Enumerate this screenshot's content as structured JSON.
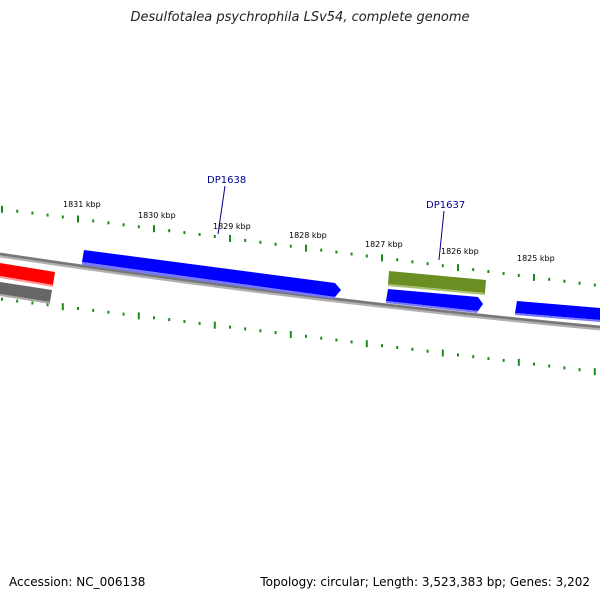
{
  "title": "Desulfotalea psychrophila LSv54, complete genome",
  "footer": {
    "accession": "Accession: NC_006138",
    "summary": "Topology: circular; Length: 3,523,383 bp; Genes: 3,202"
  },
  "colors": {
    "tick_green": "#1a8a1a",
    "backbone": "#808080",
    "gene_blue": "#0000ff",
    "gene_red": "#ff0000",
    "gene_gray": "#666666",
    "gene_olive": "#6b8e23",
    "label_navy": "#00008b"
  },
  "ticks": {
    "labels": [
      "1831 kbp",
      "1830 kbp",
      "1829 kbp",
      "1828 kbp",
      "1827 kbp",
      "1826 kbp",
      "1825 kbp"
    ]
  },
  "gene_labels": {
    "dp1638": "DP1638",
    "dp1637": "DP1637"
  }
}
